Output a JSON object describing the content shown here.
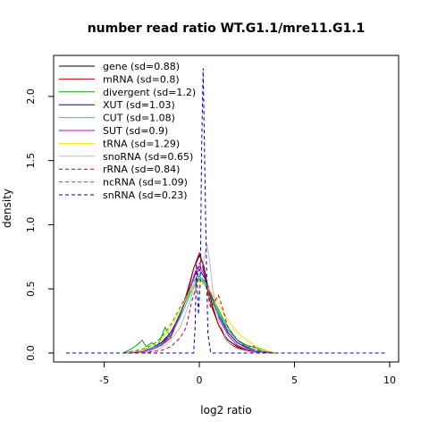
{
  "chart_data": {
    "type": "line",
    "title": "number read ratio WT.G1.1/mre11.G1.1",
    "xlabel": "log2 ratio",
    "ylabel": "density",
    "xlim": [
      -7,
      10
    ],
    "ylim": [
      0,
      2.25
    ],
    "xticks": [
      "-5",
      "0",
      "5",
      "10"
    ],
    "xtick_values": [
      -5,
      0,
      5,
      10
    ],
    "yticks": [
      "0.0",
      "0.5",
      "1.0",
      "1.5",
      "2.0"
    ],
    "ytick_values": [
      0,
      0.5,
      1.0,
      1.5,
      2.0
    ],
    "grid": false,
    "legend_position": "top-left",
    "series": [
      {
        "name": "gene (sd=0.88)",
        "color": "#000000",
        "dash": "solid",
        "x": [
          -4.0,
          -3.0,
          -2.5,
          -2.0,
          -1.5,
          -1.0,
          -0.6,
          -0.3,
          0.0,
          0.2,
          0.4,
          0.7,
          1.0,
          1.5,
          2.0,
          2.5,
          3.0,
          4.0
        ],
        "y": [
          0,
          0.02,
          0.04,
          0.08,
          0.14,
          0.3,
          0.48,
          0.66,
          0.76,
          0.7,
          0.55,
          0.36,
          0.22,
          0.1,
          0.05,
          0.02,
          0.01,
          0
        ]
      },
      {
        "name": "mRNA (sd=0.8)",
        "color": "#cc0000",
        "dash": "solid",
        "x": [
          -4.0,
          -3.0,
          -2.5,
          -2.0,
          -1.5,
          -1.0,
          -0.6,
          -0.3,
          0.0,
          0.1,
          0.3,
          0.6,
          1.0,
          1.5,
          2.0,
          2.5,
          3.0,
          4.0
        ],
        "y": [
          0,
          0.01,
          0.03,
          0.06,
          0.12,
          0.3,
          0.5,
          0.66,
          0.78,
          0.74,
          0.58,
          0.38,
          0.22,
          0.08,
          0.04,
          0.02,
          0.01,
          0
        ]
      },
      {
        "name": "divergent (sd=1.2)",
        "color": "#00aa00",
        "dash": "solid",
        "x": [
          -4.0,
          -3.6,
          -3.3,
          -3.0,
          -2.8,
          -2.5,
          -2.2,
          -1.8,
          -1.5,
          -1.2,
          -0.8,
          -0.4,
          0.0,
          0.4,
          0.8,
          1.2,
          1.6,
          2.0,
          2.5,
          3.0,
          3.5,
          4.0
        ],
        "y": [
          0,
          0.03,
          0.06,
          0.1,
          0.05,
          0.08,
          0.05,
          0.2,
          0.12,
          0.25,
          0.38,
          0.5,
          0.58,
          0.52,
          0.4,
          0.28,
          0.18,
          0.1,
          0.06,
          0.04,
          0.02,
          0
        ]
      },
      {
        "name": "XUT (sd=1.03)",
        "color": "#0000cc",
        "dash": "solid",
        "x": [
          -4.0,
          -3.0,
          -2.5,
          -2.0,
          -1.5,
          -1.0,
          -0.5,
          -0.2,
          0.0,
          0.3,
          0.6,
          1.0,
          1.5,
          2.0,
          2.5,
          3.0,
          4.0
        ],
        "y": [
          0,
          0.02,
          0.04,
          0.08,
          0.16,
          0.3,
          0.5,
          0.62,
          0.65,
          0.58,
          0.46,
          0.3,
          0.16,
          0.08,
          0.04,
          0.02,
          0
        ]
      },
      {
        "name": "CUT (sd=1.08)",
        "color": "#00cccc",
        "dash": "solid",
        "x": [
          -4.0,
          -3.0,
          -2.5,
          -2.0,
          -1.5,
          -1.0,
          -0.5,
          -0.2,
          0.0,
          0.3,
          0.6,
          1.0,
          1.5,
          2.0,
          2.5,
          3.0,
          4.0
        ],
        "y": [
          0,
          0.02,
          0.04,
          0.07,
          0.14,
          0.28,
          0.45,
          0.56,
          0.6,
          0.56,
          0.45,
          0.32,
          0.18,
          0.1,
          0.05,
          0.02,
          0
        ]
      },
      {
        "name": "SUT (sd=0.9)",
        "color": "#cc00cc",
        "dash": "solid",
        "x": [
          -4.0,
          -3.0,
          -2.5,
          -2.0,
          -1.5,
          -1.0,
          -0.5,
          -0.2,
          0.0,
          0.3,
          0.6,
          1.0,
          1.5,
          2.0,
          2.5,
          3.0,
          4.0
        ],
        "y": [
          0,
          0.01,
          0.03,
          0.06,
          0.14,
          0.3,
          0.5,
          0.64,
          0.68,
          0.6,
          0.45,
          0.28,
          0.14,
          0.06,
          0.03,
          0.01,
          0
        ]
      },
      {
        "name": "tRNA (sd=1.29)",
        "color": "#ffdd00",
        "dash": "solid",
        "x": [
          -4.0,
          -3.0,
          -2.0,
          -1.5,
          -1.0,
          -0.5,
          0.0,
          0.5,
          1.0,
          1.5,
          2.0,
          2.5,
          3.0,
          3.5,
          4.0
        ],
        "y": [
          0,
          0.02,
          0.1,
          0.2,
          0.34,
          0.48,
          0.56,
          0.5,
          0.38,
          0.26,
          0.16,
          0.1,
          0.05,
          0.02,
          0
        ]
      },
      {
        "name": "snoRNA (sd=0.65)",
        "color": "#bbbbbb",
        "dash": "solid",
        "x": [
          -3.0,
          -2.0,
          -1.5,
          -1.0,
          -0.5,
          -0.2,
          0.0,
          0.2,
          0.4,
          0.55,
          0.7,
          1.0,
          1.5,
          2.0,
          3.0
        ],
        "y": [
          0,
          0.04,
          0.1,
          0.2,
          0.4,
          0.55,
          0.6,
          0.7,
          0.85,
          0.7,
          0.5,
          0.26,
          0.08,
          0.03,
          0
        ]
      },
      {
        "name": "rRNA (sd=0.84)",
        "color": "#cc0000",
        "dash": "dash",
        "x": [
          -3.0,
          -2.0,
          -1.5,
          -1.0,
          -0.7,
          -0.4,
          -0.2,
          0.0,
          0.2,
          0.4,
          0.6,
          0.8,
          1.0,
          1.2,
          1.5,
          2.0,
          2.5,
          2.8,
          3.0,
          3.5
        ],
        "y": [
          0,
          0.02,
          0.05,
          0.12,
          0.2,
          0.4,
          0.5,
          0.7,
          0.66,
          0.48,
          0.35,
          0.4,
          0.45,
          0.36,
          0.2,
          0.1,
          0.04,
          0.06,
          0.03,
          0
        ]
      },
      {
        "name": "ncRNA (sd=1.09)",
        "color": "#00aa00",
        "dash": "dash",
        "x": [
          -4.0,
          -3.0,
          -2.5,
          -2.0,
          -1.5,
          -1.0,
          -0.5,
          -0.2,
          0.0,
          0.3,
          0.6,
          1.0,
          1.5,
          2.0,
          2.5,
          3.0,
          4.0
        ],
        "y": [
          0,
          0.03,
          0.06,
          0.12,
          0.22,
          0.36,
          0.5,
          0.58,
          0.6,
          0.55,
          0.44,
          0.3,
          0.18,
          0.1,
          0.05,
          0.02,
          0
        ]
      },
      {
        "name": "snRNA (sd=0.23)",
        "color": "#0000cc",
        "dash": "dash",
        "x": [
          -7,
          -0.3,
          -0.22,
          -0.15,
          -0.05,
          0.05,
          0.12,
          0.2,
          0.28,
          0.36,
          0.45,
          0.6,
          9.8
        ],
        "y": [
          0,
          0,
          0.22,
          0.72,
          0.3,
          0.55,
          1.6,
          2.22,
          1.5,
          0.8,
          0.15,
          0,
          0
        ]
      }
    ]
  }
}
